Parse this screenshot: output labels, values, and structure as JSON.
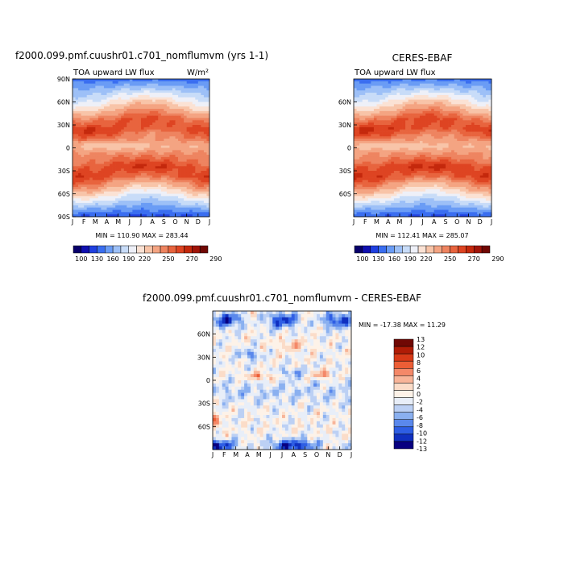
{
  "chart_data": [
    {
      "type": "heatmap",
      "title": "f2000.099.pmf.cuushr01.c701_nomflumvm (yrs 1-1)",
      "subtitle_left": "TOA upward LW flux",
      "subtitle_right": "W/m²",
      "minmax": "MIN = 110.90  MAX = 283.44",
      "x_ticks": [
        "J",
        "F",
        "M",
        "A",
        "M",
        "J",
        "J",
        "A",
        "S",
        "O",
        "N",
        "D",
        "J"
      ],
      "y_ticks": [
        "90N",
        "60N",
        "30N",
        "0",
        "30S",
        "60S",
        "90S"
      ],
      "ylim": [
        -90,
        90
      ],
      "colorbar_labels": [
        "100",
        "130",
        "160",
        "190",
        "220",
        "250",
        "270",
        "290"
      ],
      "profile": [
        140,
        170,
        200,
        232,
        262,
        272,
        258,
        246,
        258,
        274,
        268,
        238,
        200,
        165,
        130
      ]
    },
    {
      "type": "heatmap",
      "title": "CERES-EBAF",
      "subtitle_left": "TOA upward LW flux",
      "minmax": "MIN = 112.41  MAX = 285.07",
      "x_ticks": [
        "J",
        "F",
        "M",
        "A",
        "M",
        "J",
        "J",
        "A",
        "S",
        "O",
        "N",
        "D",
        "J"
      ],
      "y_ticks": [
        "60N",
        "30N",
        "0",
        "30S",
        "60S"
      ],
      "ylim": [
        -90,
        90
      ],
      "colorbar_labels": [
        "100",
        "130",
        "160",
        "190",
        "220",
        "250",
        "270",
        "290"
      ],
      "profile": [
        142,
        172,
        202,
        234,
        264,
        274,
        256,
        244,
        256,
        276,
        270,
        240,
        202,
        167,
        132
      ]
    },
    {
      "type": "heatmap",
      "title": "f2000.099.pmf.cuushr01.c701_nomflumvm  -  CERES-EBAF",
      "minmax": "MIN = -17.38  MAX =  11.29",
      "x_ticks": [
        "J",
        "F",
        "M",
        "A",
        "M",
        "J",
        "J",
        "A",
        "S",
        "O",
        "N",
        "D",
        "J"
      ],
      "y_ticks": [
        "60N",
        "30N",
        "0",
        "30S",
        "60S"
      ],
      "ylim": [
        -90,
        90
      ],
      "colorbar_labels": [
        "13",
        "12",
        "10",
        "8",
        "6",
        "4",
        "2",
        "0",
        "-2",
        "-4",
        "-6",
        "-8",
        "-10",
        "-12",
        "-13"
      ]
    }
  ],
  "palettes": {
    "flux": [
      "#08006a",
      "#1010b0",
      "#2040e0",
      "#3a6ef0",
      "#6a9cf5",
      "#9dc0f7",
      "#c8dcf8",
      "#eef0f8",
      "#fbe2d4",
      "#f8c4a8",
      "#f4a482",
      "#ee8460",
      "#e8643e",
      "#de4422",
      "#c4280c",
      "#a01408",
      "#700804"
    ],
    "diff": [
      "#700804",
      "#b01c06",
      "#d83a18",
      "#ec5e36",
      "#f48868",
      "#f8b498",
      "#fbdcc8",
      "#fdf2e8",
      "#e8eef8",
      "#bcd0f4",
      "#8ab0f0",
      "#5a88ec",
      "#2e5ee4",
      "#1030c0",
      "#080080"
    ]
  }
}
